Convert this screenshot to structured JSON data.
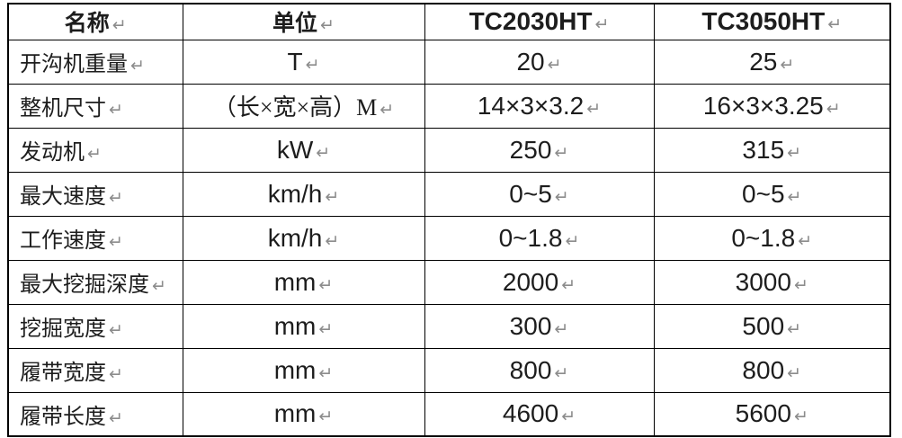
{
  "paragraph_mark": "↵",
  "colors": {
    "border": "#000000",
    "text": "#1d1d1d",
    "paragraph_mark": "#8c8c8c",
    "background": "#ffffff"
  },
  "table": {
    "header": {
      "name": "名称",
      "unit": "单位",
      "model1": "TC2030HT",
      "model2": "TC3050HT"
    },
    "rows": [
      {
        "name": "开沟机重量",
        "unit": "T",
        "v1": "20",
        "v2": "25"
      },
      {
        "name": "整机尺寸",
        "unit": "（长×宽×高）M",
        "v1": "14×3×3.2",
        "v2": "16×3×3.25"
      },
      {
        "name": "发动机",
        "unit": "kW",
        "v1": "250",
        "v2": "315"
      },
      {
        "name": "最大速度",
        "unit": "km/h",
        "v1": "0~5",
        "v2": "0~5"
      },
      {
        "name": "工作速度",
        "unit": "km/h",
        "v1": "0~1.8",
        "v2": "0~1.8"
      },
      {
        "name": "最大挖掘深度",
        "unit": "mm",
        "v1": "2000",
        "v2": "3000"
      },
      {
        "name": "挖掘宽度",
        "unit": "mm",
        "v1": "300",
        "v2": "500"
      },
      {
        "name": "履带宽度",
        "unit": "mm",
        "v1": "800",
        "v2": "800"
      },
      {
        "name": "履带长度",
        "unit": "mm",
        "v1": "4600",
        "v2": "5600"
      }
    ]
  }
}
